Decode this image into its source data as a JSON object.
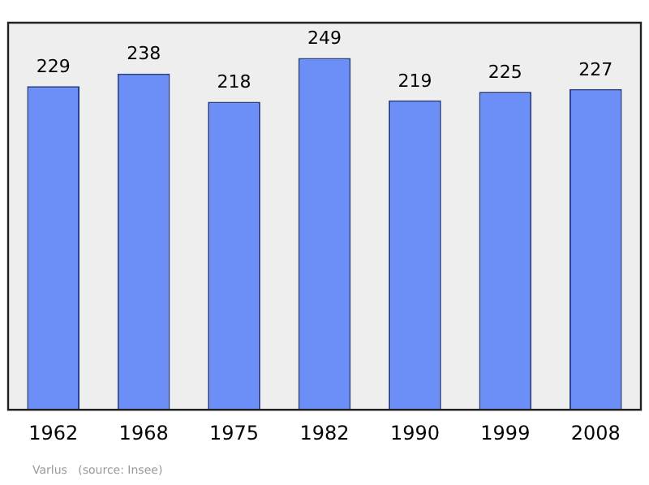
{
  "chart_data": {
    "type": "bar",
    "categories": [
      "1962",
      "1968",
      "1975",
      "1982",
      "1990",
      "1999",
      "2008"
    ],
    "values": [
      229,
      238,
      218,
      249,
      219,
      225,
      227
    ],
    "color": "#6b8ff7",
    "ylim": [
      0,
      274
    ],
    "data_labels": true,
    "grid": false,
    "legend": false,
    "tick_labels": "x",
    "annotations": [
      "Varlus   (source: Insee)"
    ]
  }
}
